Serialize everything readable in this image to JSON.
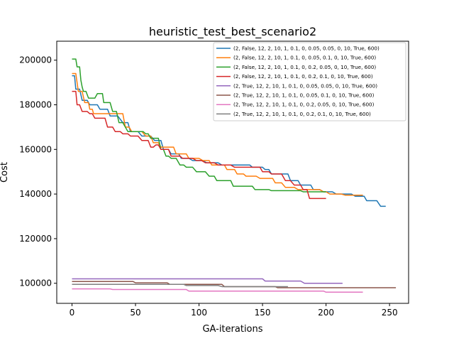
{
  "chart_data": {
    "type": "line",
    "title": "heuristic_test_best_scenario2",
    "xlabel": "GA-iterations",
    "ylabel": "Cost",
    "xlim": [
      -12,
      265
    ],
    "ylim": [
      91000,
      208500
    ],
    "xticks": [
      0,
      50,
      100,
      150,
      200,
      250
    ],
    "yticks": [
      100000,
      120000,
      140000,
      160000,
      180000,
      200000
    ],
    "grid": false,
    "legend_position": "top-right",
    "series": [
      {
        "name": "(2, False, 12, 2, 10, 1, 0.1, 0, 0.05, 0.05, 0, 10, True, 600)",
        "color": "#1f77b4",
        "points": [
          [
            0,
            193000
          ],
          [
            2,
            193000
          ],
          [
            3,
            187000
          ],
          [
            6,
            187000
          ],
          [
            8,
            182000
          ],
          [
            12,
            182000
          ],
          [
            14,
            180000
          ],
          [
            20,
            180000
          ],
          [
            22,
            178000
          ],
          [
            28,
            178000
          ],
          [
            30,
            175000
          ],
          [
            36,
            175000
          ],
          [
            40,
            172000
          ],
          [
            44,
            172000
          ],
          [
            46,
            168000
          ],
          [
            52,
            168000
          ],
          [
            55,
            166000
          ],
          [
            62,
            166000
          ],
          [
            65,
            164000
          ],
          [
            70,
            164000
          ],
          [
            72,
            160000
          ],
          [
            76,
            160000
          ],
          [
            78,
            158000
          ],
          [
            84,
            158000
          ],
          [
            86,
            156000
          ],
          [
            92,
            156000
          ],
          [
            95,
            155000
          ],
          [
            103,
            155000
          ],
          [
            106,
            154000
          ],
          [
            115,
            154000
          ],
          [
            118,
            153000
          ],
          [
            140,
            153000
          ],
          [
            142,
            152000
          ],
          [
            150,
            152000
          ],
          [
            152,
            151000
          ],
          [
            155,
            151000
          ],
          [
            157,
            149000
          ],
          [
            170,
            149000
          ],
          [
            172,
            146000
          ],
          [
            178,
            146000
          ],
          [
            180,
            144000
          ],
          [
            188,
            144000
          ],
          [
            190,
            142000
          ],
          [
            195,
            142000
          ],
          [
            198,
            141000
          ],
          [
            205,
            141000
          ],
          [
            208,
            140000
          ],
          [
            220,
            140000
          ],
          [
            223,
            139000
          ],
          [
            230,
            139000
          ],
          [
            232,
            137000
          ],
          [
            240,
            137000
          ],
          [
            243,
            134500
          ],
          [
            247,
            134500
          ]
        ]
      },
      {
        "name": "(2, False, 12, 2, 10, 1, 0.1, 0, 0.05, 0.1, 0, 10, True, 600)",
        "color": "#ff7f0e",
        "points": [
          [
            0,
            194000
          ],
          [
            3,
            194000
          ],
          [
            5,
            186000
          ],
          [
            8,
            186000
          ],
          [
            10,
            181000
          ],
          [
            13,
            181000
          ],
          [
            14,
            178000
          ],
          [
            16,
            178000
          ],
          [
            17,
            176000
          ],
          [
            40,
            176000
          ],
          [
            42,
            170000
          ],
          [
            45,
            170000
          ],
          [
            47,
            168000
          ],
          [
            55,
            168000
          ],
          [
            58,
            166000
          ],
          [
            62,
            166000
          ],
          [
            64,
            163000
          ],
          [
            68,
            163000
          ],
          [
            70,
            161000
          ],
          [
            80,
            161000
          ],
          [
            82,
            158000
          ],
          [
            90,
            158000
          ],
          [
            92,
            156000
          ],
          [
            100,
            156000
          ],
          [
            103,
            155000
          ],
          [
            108,
            155000
          ],
          [
            110,
            153000
          ],
          [
            120,
            153000
          ],
          [
            122,
            151000
          ],
          [
            128,
            151000
          ],
          [
            130,
            149000
          ],
          [
            135,
            149000
          ],
          [
            137,
            148000
          ],
          [
            145,
            148000
          ],
          [
            148,
            147000
          ],
          [
            158,
            147000
          ],
          [
            160,
            145000
          ],
          [
            165,
            145000
          ],
          [
            168,
            143000
          ],
          [
            175,
            143000
          ],
          [
            178,
            142000
          ],
          [
            195,
            142000
          ],
          [
            198,
            141000
          ],
          [
            200,
            141000
          ],
          [
            203,
            140000
          ],
          [
            212,
            140000
          ],
          [
            215,
            139500
          ],
          [
            229,
            139500
          ]
        ]
      },
      {
        "name": "(2, False, 12, 2, 10, 1, 0.1, 0, 0.2, 0.05, 0, 10, True, 600)",
        "color": "#2ca02c",
        "points": [
          [
            0,
            200500
          ],
          [
            3,
            200500
          ],
          [
            4,
            197000
          ],
          [
            6,
            197000
          ],
          [
            7,
            191000
          ],
          [
            8,
            188000
          ],
          [
            9,
            186000
          ],
          [
            11,
            186000
          ],
          [
            13,
            183000
          ],
          [
            18,
            183000
          ],
          [
            20,
            185000
          ],
          [
            24,
            185000
          ],
          [
            25,
            181000
          ],
          [
            30,
            181000
          ],
          [
            32,
            177000
          ],
          [
            35,
            177000
          ],
          [
            37,
            172000
          ],
          [
            40,
            172000
          ],
          [
            42,
            170000
          ],
          [
            44,
            168000
          ],
          [
            56,
            168000
          ],
          [
            58,
            167000
          ],
          [
            60,
            167000
          ],
          [
            62,
            165000
          ],
          [
            68,
            165000
          ],
          [
            70,
            160000
          ],
          [
            72,
            160000
          ],
          [
            74,
            157000
          ],
          [
            76,
            157000
          ],
          [
            78,
            156000
          ],
          [
            82,
            156000
          ],
          [
            85,
            153000
          ],
          [
            88,
            153000
          ],
          [
            90,
            152000
          ],
          [
            95,
            152000
          ],
          [
            98,
            150000
          ],
          [
            105,
            150000
          ],
          [
            108,
            148000
          ],
          [
            112,
            148000
          ],
          [
            114,
            146000
          ],
          [
            125,
            146000
          ],
          [
            127,
            143500
          ],
          [
            142,
            143500
          ],
          [
            144,
            142000
          ],
          [
            155,
            142000
          ],
          [
            157,
            141500
          ],
          [
            180,
            141500
          ],
          [
            182,
            141000
          ],
          [
            200,
            141000
          ]
        ]
      },
      {
        "name": "(2, False, 12, 2, 10, 1, 0.1, 0, 0.2, 0.1, 0, 10, True, 600)",
        "color": "#d62728",
        "points": [
          [
            0,
            186000
          ],
          [
            3,
            186000
          ],
          [
            4,
            180000
          ],
          [
            6,
            180000
          ],
          [
            8,
            177000
          ],
          [
            12,
            177000
          ],
          [
            14,
            176000
          ],
          [
            16,
            176000
          ],
          [
            18,
            174000
          ],
          [
            26,
            174000
          ],
          [
            28,
            170000
          ],
          [
            32,
            170000
          ],
          [
            34,
            168000
          ],
          [
            38,
            168000
          ],
          [
            40,
            167000
          ],
          [
            44,
            167000
          ],
          [
            46,
            166000
          ],
          [
            52,
            166000
          ],
          [
            55,
            164000
          ],
          [
            60,
            164000
          ],
          [
            62,
            161000
          ],
          [
            64,
            161000
          ],
          [
            66,
            162000
          ],
          [
            68,
            162000
          ],
          [
            70,
            160000
          ],
          [
            76,
            160000
          ],
          [
            78,
            157000
          ],
          [
            85,
            157000
          ],
          [
            87,
            156000
          ],
          [
            95,
            156000
          ],
          [
            98,
            155000
          ],
          [
            102,
            155000
          ],
          [
            105,
            154000
          ],
          [
            112,
            154000
          ],
          [
            115,
            153000
          ],
          [
            125,
            153000
          ],
          [
            128,
            152000
          ],
          [
            148,
            152000
          ],
          [
            150,
            150000
          ],
          [
            155,
            150000
          ],
          [
            157,
            149000
          ],
          [
            165,
            149000
          ],
          [
            168,
            146000
          ],
          [
            172,
            146000
          ],
          [
            175,
            144000
          ],
          [
            180,
            144000
          ],
          [
            182,
            142000
          ],
          [
            185,
            142000
          ],
          [
            187,
            138000
          ],
          [
            200,
            138000
          ]
        ]
      },
      {
        "name": "(2, True, 12, 2, 10, 1, 0.1, 0, 0.05, 0.05, 0, 10, True, 600)",
        "color": "#9467bd",
        "points": [
          [
            0,
            102000
          ],
          [
            150,
            102000
          ],
          [
            152,
            101000
          ],
          [
            180,
            101000
          ],
          [
            183,
            100000
          ],
          [
            213,
            100000
          ]
        ]
      },
      {
        "name": "(2, True, 12, 2, 10, 1, 0.1, 0, 0.05, 0.1, 0, 10, True, 600)",
        "color": "#8c564b",
        "points": [
          [
            0,
            100800
          ],
          [
            48,
            100800
          ],
          [
            50,
            100200
          ],
          [
            75,
            100200
          ],
          [
            77,
            99500
          ],
          [
            118,
            99500
          ],
          [
            120,
            98500
          ],
          [
            160,
            98500
          ],
          [
            162,
            98000
          ],
          [
            255,
            98000
          ]
        ]
      },
      {
        "name": "(2, True, 12, 2, 10, 1, 0.1, 0, 0.2, 0.05, 0, 10, True, 600)",
        "color": "#e377c2",
        "points": [
          [
            0,
            97500
          ],
          [
            30,
            97500
          ],
          [
            32,
            97200
          ],
          [
            90,
            97200
          ],
          [
            92,
            96500
          ],
          [
            198,
            96500
          ],
          [
            200,
            96000
          ],
          [
            229,
            96000
          ]
        ]
      },
      {
        "name": "(2, True, 12, 2, 10, 1, 0.1, 0, 0.2, 0.1, 0, 10, True, 600)",
        "color": "#7f7f7f",
        "points": [
          [
            0,
            99500
          ],
          [
            88,
            99500
          ],
          [
            90,
            99000
          ],
          [
            115,
            99000
          ],
          [
            118,
            98500
          ],
          [
            170,
            98500
          ]
        ]
      }
    ]
  }
}
